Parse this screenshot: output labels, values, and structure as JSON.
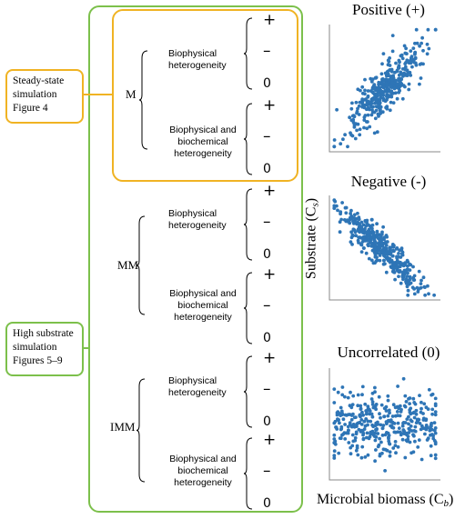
{
  "side_boxes": {
    "steady": [
      "Steady-state",
      "simulation",
      "Figure 4"
    ],
    "high": [
      "High substrate",
      "simulation",
      "Figures 5–9"
    ]
  },
  "groups": [
    {
      "label": "M",
      "rows": [
        "Biophysical heterogeneity",
        "Biophysical and biochemical heterogeneity"
      ]
    },
    {
      "label": "MM",
      "rows": [
        "Biophysical heterogeneity",
        "Biophysical and biochemical heterogeneity"
      ]
    },
    {
      "label": "IMM",
      "rows": [
        "Biophysical heterogeneity",
        "Biophysical and biochemical heterogeneity"
      ]
    }
  ],
  "row_text": {
    "bio1": [
      "Biophysical",
      "heterogeneity"
    ],
    "bio2": [
      "Biophysical and",
      "biochemical",
      "heterogeneity"
    ]
  },
  "signs": {
    "plus": "+",
    "minus": "–",
    "zero": "0"
  },
  "plots": {
    "positive": "Positive (+)",
    "negative": "Negative (-)",
    "uncorrelated": "Uncorrelated (0)"
  },
  "axes": {
    "y_label": "Substrate (C",
    "y_sub": "s",
    "x_label": "Microbial biomass (C",
    "x_sub": "b",
    "close": ")"
  },
  "colors": {
    "orange": "#f0b323",
    "green": "#7cc04b",
    "points": "#2e75b6"
  },
  "chart_data": [
    {
      "type": "scatter",
      "title": "Positive (+)",
      "correlation": "positive"
    },
    {
      "type": "scatter",
      "title": "Negative (-)",
      "correlation": "negative"
    },
    {
      "type": "scatter",
      "title": "Uncorrelated (0)",
      "correlation": "none"
    }
  ]
}
